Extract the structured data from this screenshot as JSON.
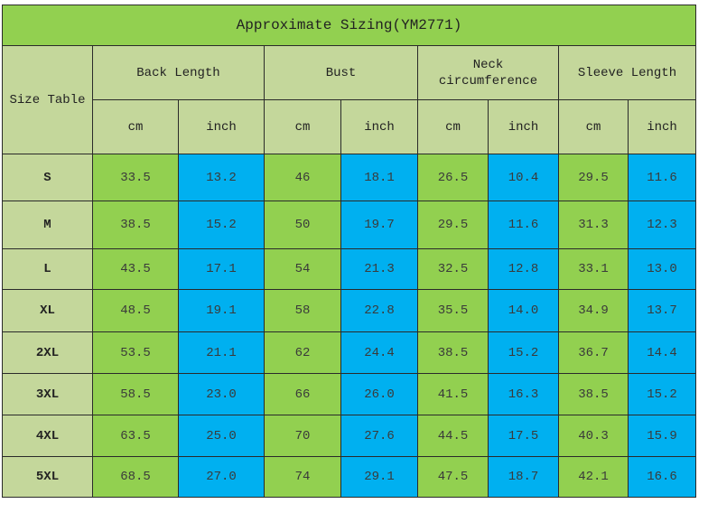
{
  "title": "Approximate Sizing(YM2771)",
  "corner": "Size Table",
  "groups": [
    "Back Length",
    "Bust",
    "Neck circumference",
    "Sleeve Length"
  ],
  "units": [
    "cm",
    "inch",
    "cm",
    "inch",
    "cm",
    "inch",
    "cm",
    "inch"
  ],
  "rows": [
    [
      "S",
      "33.5",
      "13.2",
      "46",
      "18.1",
      "26.5",
      "10.4",
      "29.5",
      "11.6"
    ],
    [
      "M",
      "38.5",
      "15.2",
      "50",
      "19.7",
      "29.5",
      "11.6",
      "31.3",
      "12.3"
    ],
    [
      "L",
      "43.5",
      "17.1",
      "54",
      "21.3",
      "32.5",
      "12.8",
      "33.1",
      "13.0"
    ],
    [
      "XL",
      "48.5",
      "19.1",
      "58",
      "22.8",
      "35.5",
      "14.0",
      "34.9",
      "13.7"
    ],
    [
      "2XL",
      "53.5",
      "21.1",
      "62",
      "24.4",
      "38.5",
      "15.2",
      "36.7",
      "14.4"
    ],
    [
      "3XL",
      "58.5",
      "23.0",
      "66",
      "26.0",
      "41.5",
      "16.3",
      "38.5",
      "15.2"
    ],
    [
      "4XL",
      "63.5",
      "25.0",
      "70",
      "27.6",
      "44.5",
      "17.5",
      "40.3",
      "15.9"
    ],
    [
      "5XL",
      "68.5",
      "27.0",
      "74",
      "29.1",
      "47.5",
      "18.7",
      "42.1",
      "16.6"
    ]
  ]
}
